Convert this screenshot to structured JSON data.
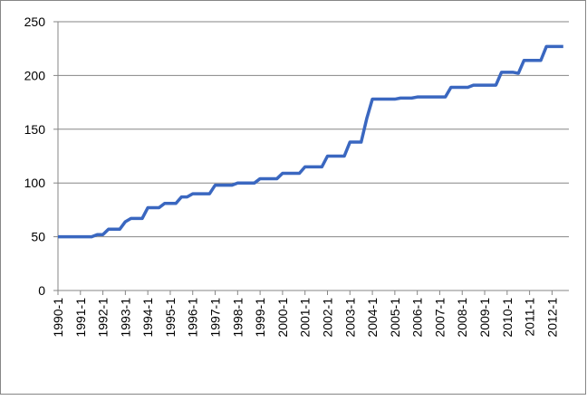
{
  "chart_data": {
    "type": "line",
    "categories": [
      "1990-1",
      null,
      null,
      null,
      "1991-1",
      null,
      null,
      null,
      "1992-1",
      null,
      null,
      null,
      "1993-1",
      null,
      null,
      null,
      "1994-1",
      null,
      null,
      null,
      "1995-1",
      null,
      null,
      null,
      "1996-1",
      null,
      null,
      null,
      "1997-1",
      null,
      null,
      null,
      "1998-1",
      null,
      null,
      null,
      "1999-1",
      null,
      null,
      null,
      "2000-1",
      null,
      null,
      null,
      "2001-1",
      null,
      null,
      null,
      "2002-1",
      null,
      null,
      null,
      "2003-1",
      null,
      null,
      null,
      "2004-1",
      null,
      null,
      null,
      "2005-1",
      null,
      null,
      null,
      "2006-1",
      null,
      null,
      null,
      "2007-1",
      null,
      null,
      null,
      "2008-1",
      null,
      null,
      null,
      "2009-1",
      null,
      null,
      null,
      "2010-1",
      null,
      null,
      null,
      "2011-1",
      null,
      null,
      null,
      "2012-1",
      null,
      null
    ],
    "values": [
      50,
      50,
      50,
      50,
      50,
      50,
      50,
      52,
      52,
      57,
      57,
      57,
      64,
      67,
      67,
      67,
      77,
      77,
      77,
      81,
      81,
      81,
      87,
      87,
      90,
      90,
      90,
      90,
      98,
      98,
      98,
      98,
      100,
      100,
      100,
      100,
      104,
      104,
      104,
      104,
      109,
      109,
      109,
      109,
      115,
      115,
      115,
      115,
      125,
      125,
      125,
      125,
      138,
      138,
      138,
      160,
      178,
      178,
      178,
      178,
      178,
      179,
      179,
      179,
      180,
      180,
      180,
      180,
      180,
      180,
      189,
      189,
      189,
      189,
      191,
      191,
      191,
      191,
      191,
      203,
      203,
      203,
      202,
      214,
      214,
      214,
      214,
      227,
      227,
      227,
      227
    ],
    "color": "#3a67c0",
    "ylim": [
      0,
      250
    ],
    "yticks": [
      0,
      50,
      100,
      150,
      200,
      250
    ],
    "grid": true
  }
}
